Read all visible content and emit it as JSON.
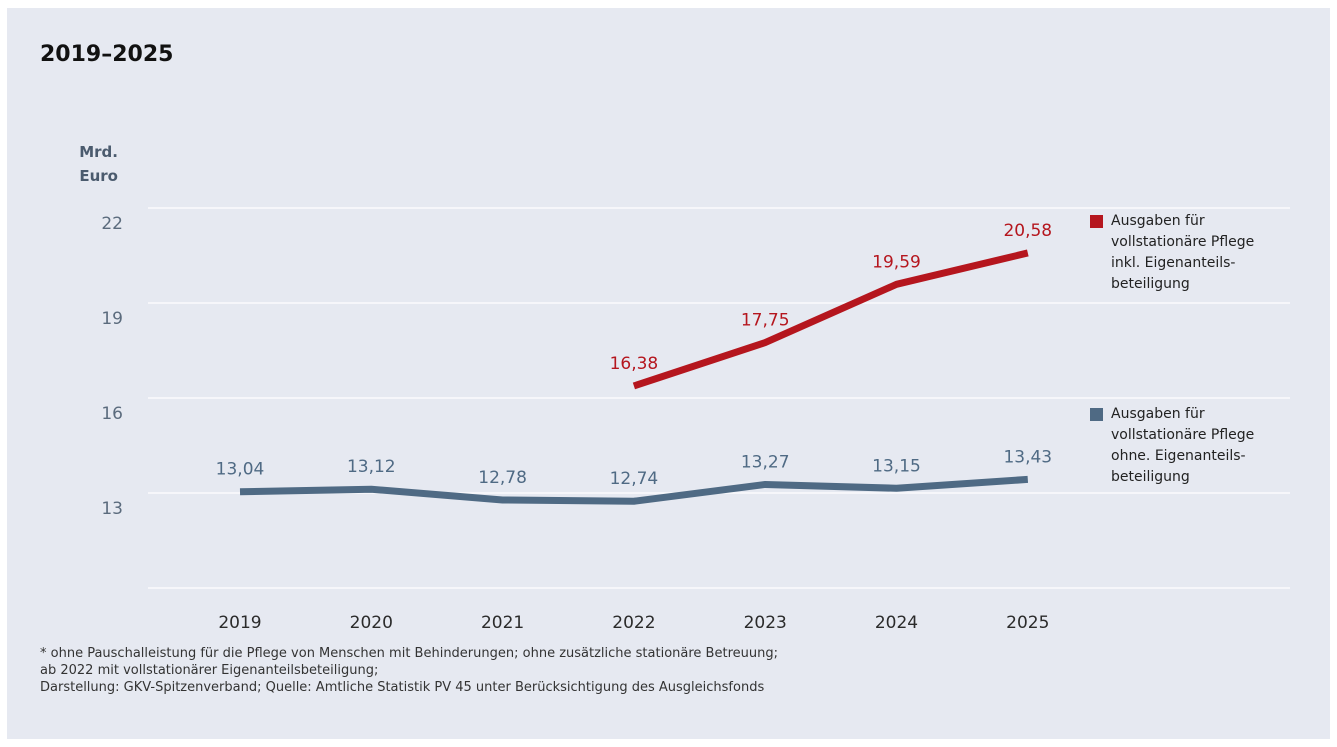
{
  "title": "2019–2025",
  "unit_label": "Mrd.\nEuro",
  "footnote": "* ohne Pauschalleistung für die Pflege von Menschen mit Behinderungen; ohne zusätzliche stationäre Betreuung;\nab 2022 mit vollstationärer Eigenanteilsbeteiligung;\nDarstellung: GKV-Spitzenverband; Quelle: Amtliche Statistik PV 45 unter Berücksichtigung des Ausgleichsfonds",
  "legend": [
    {
      "label": "Ausgaben für\nvollstationäre Pflege\ninkl. Eigenanteils-\nbeteiligung",
      "color": "#b5161e"
    },
    {
      "label": "Ausgaben für\nvollstationäre Pflege\nohne. Eigenanteils-\nbeteiligung",
      "color": "#4f6a84"
    }
  ],
  "chart_data": {
    "type": "line",
    "x": [
      "2019",
      "2020",
      "2021",
      "2022",
      "2023",
      "2024",
      "2025"
    ],
    "y_ticks": [
      "22",
      "19",
      "16",
      "13"
    ],
    "ylim": [
      10,
      22
    ],
    "series": [
      {
        "name": "Ausgaben für vollstationäre Pflege inkl. Eigenanteils-beteiligung",
        "color": "#b5161e",
        "values": [
          null,
          null,
          null,
          16.38,
          17.75,
          19.59,
          20.58
        ],
        "labels": [
          null,
          null,
          null,
          "16,38",
          "17,75",
          "19,59",
          "20,58"
        ]
      },
      {
        "name": "Ausgaben für vollstationäre Pflege ohne. Eigenanteils-beteiligung",
        "color": "#4f6a84",
        "values": [
          13.04,
          13.12,
          12.78,
          12.74,
          13.27,
          13.15,
          13.43
        ],
        "labels": [
          "13,04",
          "13,12",
          "12,78",
          "12,74",
          "13,27",
          "13,15",
          "13,43"
        ]
      }
    ]
  }
}
